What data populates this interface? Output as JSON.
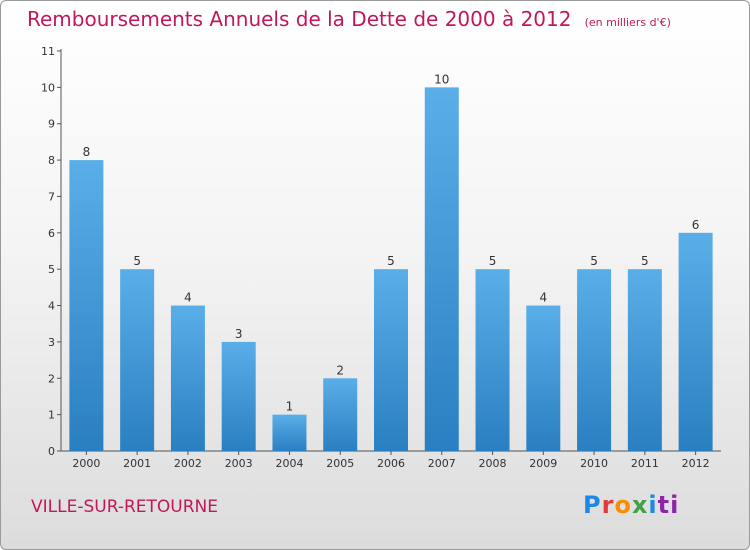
{
  "header": {
    "title": "Remboursements Annuels de la Dette de 2000 à 2012",
    "unit": "(en milliers d'€)"
  },
  "footer": {
    "commune": "VILLE-SUR-RETOURNE",
    "logo_letters": [
      "P",
      "r",
      "o",
      "x",
      "i",
      "ti"
    ]
  },
  "colors": {
    "title": "#c2185b",
    "bar_light": "#5aaee8",
    "bar_dark": "#2a7fc2"
  },
  "chart_data": {
    "type": "bar",
    "title": "Remboursements Annuels de la Dette de 2000 à 2012",
    "xlabel": "",
    "ylabel": "",
    "categories": [
      "2000",
      "2001",
      "2002",
      "2003",
      "2004",
      "2005",
      "2006",
      "2007",
      "2008",
      "2009",
      "2010",
      "2011",
      "2012"
    ],
    "values": [
      8,
      5,
      4,
      3,
      1,
      2,
      5,
      10,
      5,
      4,
      5,
      5,
      6
    ],
    "yticks": [
      0,
      1,
      2,
      3,
      4,
      5,
      6,
      7,
      8,
      9,
      10,
      11
    ],
    "ylim": [
      0,
      11
    ],
    "grid": false
  }
}
